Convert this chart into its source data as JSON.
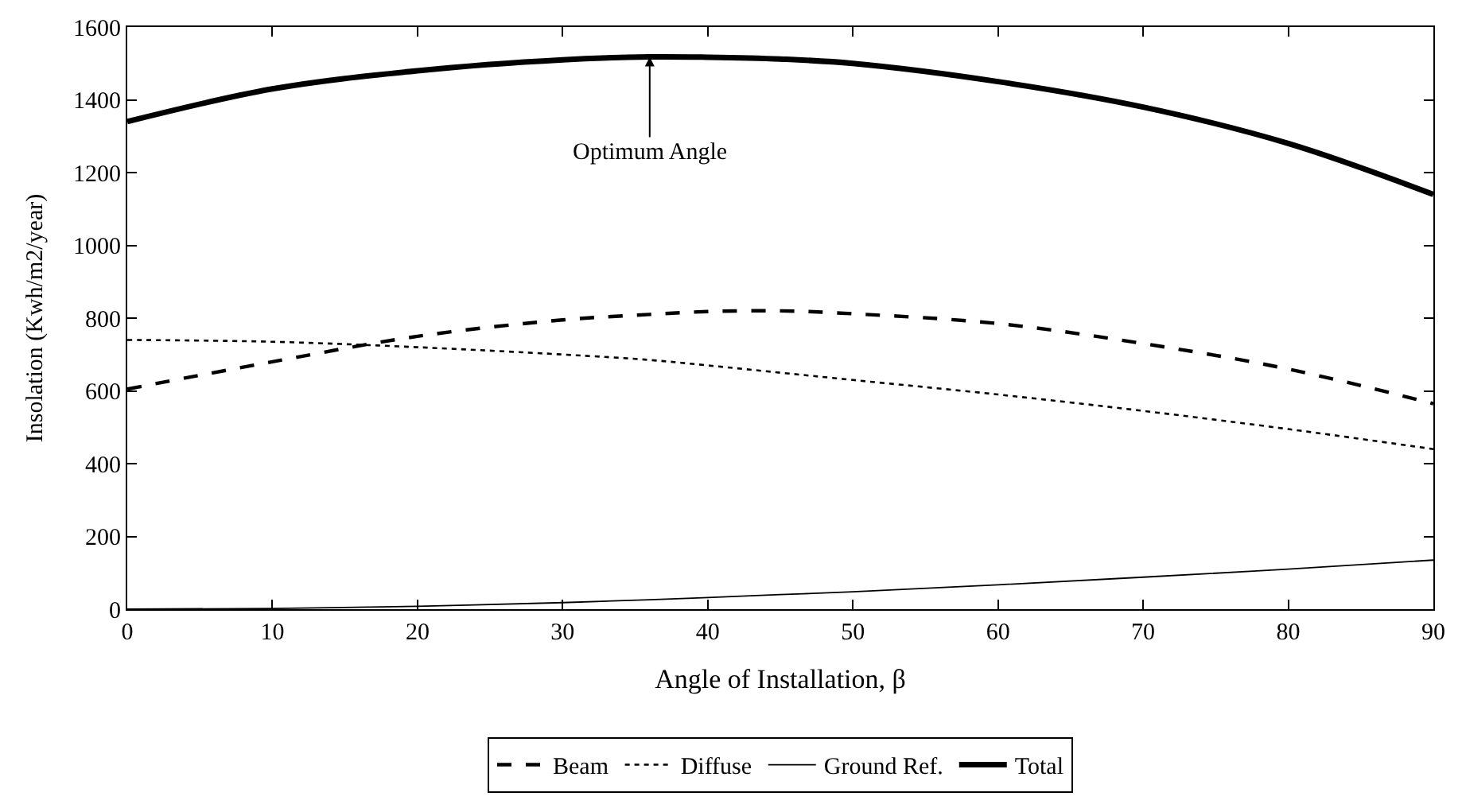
{
  "chart_data": {
    "type": "line",
    "xlabel": "Angle of Installation, β",
    "ylabel": "Insolation (Kwh/m2/year)",
    "x": [
      0,
      10,
      20,
      30,
      36,
      40,
      45,
      50,
      60,
      70,
      80,
      90
    ],
    "series": [
      {
        "name": "Beam",
        "color": "#000000",
        "line_style": "dashed",
        "values": [
          605,
          680,
          750,
          795,
          810,
          818,
          820,
          812,
          785,
          730,
          660,
          565
        ]
      },
      {
        "name": "Diffuse",
        "color": "#000000",
        "line_style": "dotted",
        "values": [
          740,
          735,
          720,
          700,
          685,
          670,
          650,
          630,
          590,
          545,
          495,
          440
        ]
      },
      {
        "name": "Ground Ref.",
        "color": "#000000",
        "line_style": "solid",
        "values": [
          0,
          2,
          8,
          18,
          26,
          32,
          40,
          48,
          67,
          88,
          110,
          135
        ]
      },
      {
        "name": "Total",
        "color": "#000000",
        "line_style": "solid",
        "values": [
          1340,
          1430,
          1480,
          1510,
          1518,
          1517,
          1512,
          1500,
          1450,
          1380,
          1280,
          1140
        ]
      }
    ],
    "xlim": [
      0,
      90
    ],
    "xticks": [
      0,
      10,
      20,
      30,
      40,
      50,
      60,
      70,
      80,
      90
    ],
    "ylim": [
      0,
      1600
    ],
    "yticks": [
      0,
      200,
      400,
      600,
      800,
      1000,
      1200,
      1400,
      1600
    ],
    "annotations": [
      {
        "text": "Optimum Angle",
        "x": 36,
        "y": 1518
      }
    ],
    "legend": "bottom",
    "marker": "none"
  }
}
